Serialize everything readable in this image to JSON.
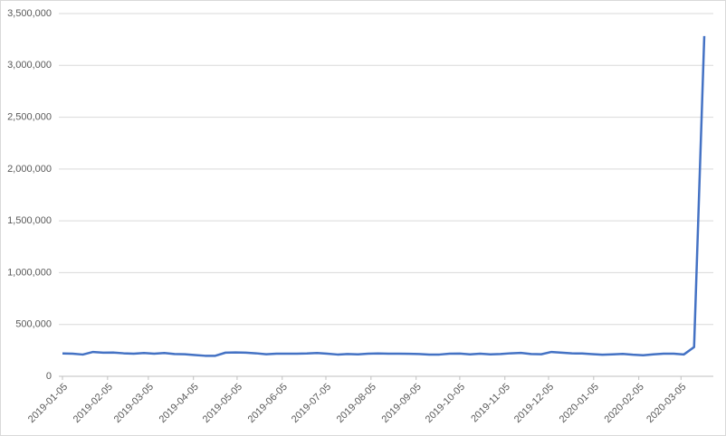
{
  "chart_data": {
    "type": "line",
    "x": [
      "2019-01-05",
      "2019-01-12",
      "2019-01-19",
      "2019-01-26",
      "2019-02-02",
      "2019-02-09",
      "2019-02-16",
      "2019-02-23",
      "2019-03-02",
      "2019-03-09",
      "2019-03-16",
      "2019-03-23",
      "2019-03-30",
      "2019-04-06",
      "2019-04-13",
      "2019-04-20",
      "2019-04-27",
      "2019-05-04",
      "2019-05-11",
      "2019-05-18",
      "2019-05-25",
      "2019-06-01",
      "2019-06-08",
      "2019-06-15",
      "2019-06-22",
      "2019-06-29",
      "2019-07-06",
      "2019-07-13",
      "2019-07-20",
      "2019-07-27",
      "2019-08-03",
      "2019-08-10",
      "2019-08-17",
      "2019-08-24",
      "2019-08-31",
      "2019-09-07",
      "2019-09-14",
      "2019-09-21",
      "2019-09-28",
      "2019-10-05",
      "2019-10-12",
      "2019-10-19",
      "2019-10-26",
      "2019-11-02",
      "2019-11-09",
      "2019-11-16",
      "2019-11-23",
      "2019-11-30",
      "2019-12-07",
      "2019-12-14",
      "2019-12-21",
      "2019-12-28",
      "2020-01-04",
      "2020-01-11",
      "2020-01-18",
      "2020-01-25",
      "2020-02-01",
      "2020-02-08",
      "2020-02-15",
      "2020-02-22",
      "2020-02-29",
      "2020-03-07",
      "2020-03-14",
      "2020-03-21"
    ],
    "series": [
      {
        "color": "#4472c4",
        "values": [
          220000,
          218000,
          210000,
          235000,
          228000,
          229000,
          222000,
          218000,
          225000,
          218000,
          225000,
          215000,
          213000,
          205000,
          198000,
          198000,
          228000,
          230000,
          228000,
          222000,
          213000,
          218000,
          218000,
          218000,
          220000,
          225000,
          218000,
          210000,
          215000,
          212000,
          218000,
          220000,
          218000,
          218000,
          217000,
          215000,
          210000,
          210000,
          218000,
          219000,
          212000,
          218000,
          212000,
          215000,
          222000,
          226000,
          215000,
          213000,
          235000,
          228000,
          221000,
          220000,
          214000,
          208000,
          212000,
          216000,
          208000,
          203000,
          212000,
          218000,
          218000,
          211000,
          282000,
          3283000
        ]
      }
    ],
    "xlim": [
      "2019-01-05",
      "2020-03-21"
    ],
    "xticks": [
      "2019-01-05",
      "2019-02-05",
      "2019-03-05",
      "2019-04-05",
      "2019-05-05",
      "2019-06-05",
      "2019-07-05",
      "2019-08-05",
      "2019-09-05",
      "2019-10-05",
      "2019-11-05",
      "2019-12-05",
      "2020-01-05",
      "2020-02-05",
      "2020-03-05"
    ],
    "ylim": [
      0,
      3500000
    ],
    "yticks": [
      0,
      {
        "value": 500000,
        "label": "500,000"
      },
      {
        "value": 1000000,
        "label": "1,000,000"
      },
      {
        "value": 1500000,
        "label": "1,500,000"
      },
      {
        "value": 2000000,
        "label": "2,000,000"
      },
      {
        "value": 2500000,
        "label": "2,500,000"
      },
      {
        "value": 3000000,
        "label": "3,000,000"
      },
      {
        "value": 3500000,
        "label": "3,500,000"
      }
    ],
    "grid": true
  }
}
